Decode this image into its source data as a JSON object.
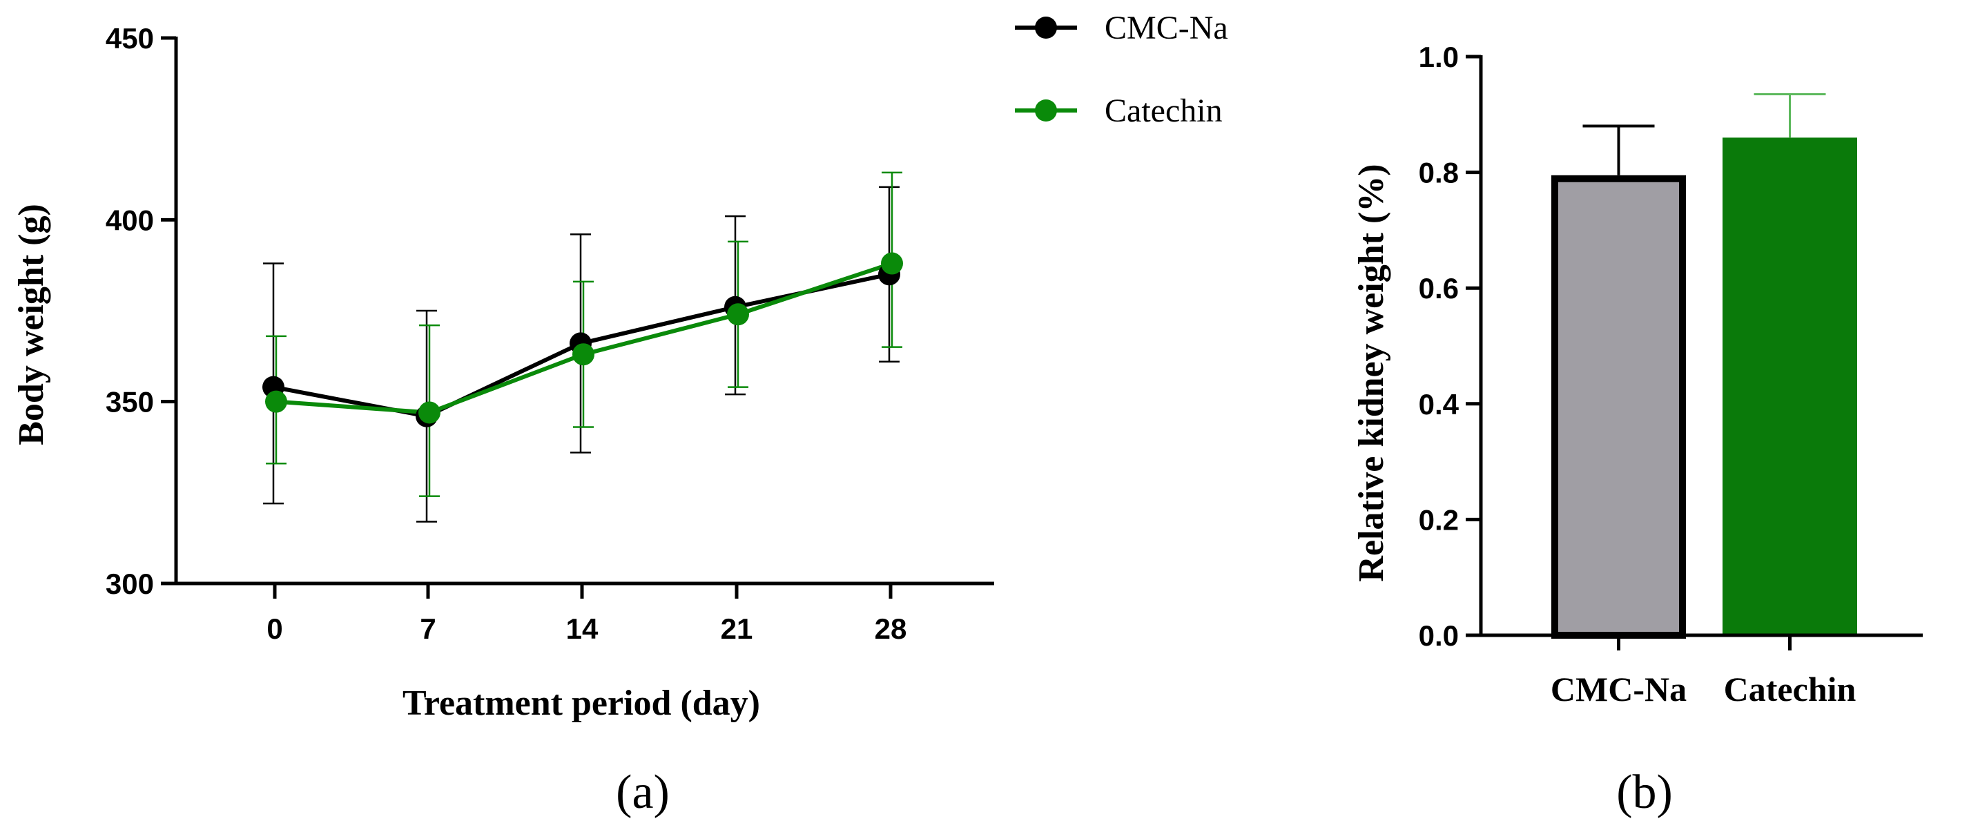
{
  "chart_data": [
    {
      "type": "line",
      "panel_label": "(a)",
      "xlabel": "Treatment period (day)",
      "ylabel": "Body weight (g)",
      "x": [
        0,
        7,
        14,
        21,
        28
      ],
      "x_tick_labels": [
        "0",
        "7",
        "14",
        "21",
        "28"
      ],
      "ylim": [
        300,
        450
      ],
      "y_ticks": [
        300,
        350,
        400,
        450
      ],
      "y_tick_labels": [
        "300",
        "350",
        "400",
        "450"
      ],
      "legend_position": "top-right",
      "series": [
        {
          "name": "CMC-Na",
          "color": "#000000",
          "values": [
            354,
            346,
            366,
            376,
            385
          ],
          "err_upper": [
            388,
            375,
            396,
            401,
            409
          ],
          "err_lower": [
            322,
            317,
            336,
            352,
            361
          ]
        },
        {
          "name": "Catechin",
          "color": "#0a8a0a",
          "values": [
            350,
            347,
            363,
            374,
            388
          ],
          "err_upper": [
            368,
            371,
            383,
            394,
            413
          ],
          "err_lower": [
            333,
            324,
            343,
            354,
            365
          ]
        }
      ]
    },
    {
      "type": "bar",
      "panel_label": "(b)",
      "ylabel": "Relative kidney weight (%)",
      "categories": [
        "CMC-Na",
        "Catechin"
      ],
      "values": [
        0.795,
        0.86
      ],
      "err_upper": [
        0.88,
        0.935
      ],
      "colors": [
        "#a09ea4",
        "#0a7a0a"
      ],
      "edge_colors": [
        "#000000",
        "#0a7a0a"
      ],
      "err_colors": [
        "#000000",
        "#5cb85c"
      ],
      "ylim": [
        0.0,
        1.0
      ],
      "y_ticks": [
        0.0,
        0.2,
        0.4,
        0.6,
        0.8,
        1.0
      ],
      "y_tick_labels": [
        "0.0",
        "0.2",
        "0.4",
        "0.6",
        "0.8",
        "1.0"
      ]
    }
  ]
}
